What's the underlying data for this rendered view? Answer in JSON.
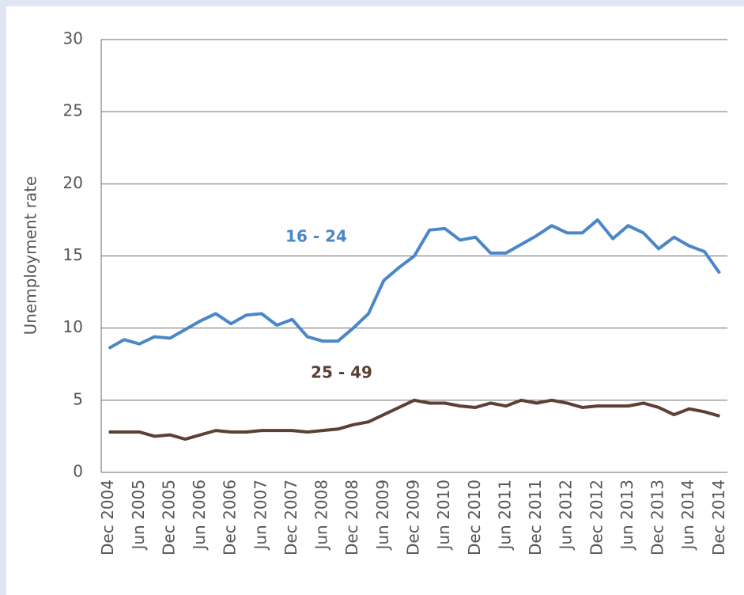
{
  "chart_data": {
    "type": "line",
    "y_label": "Unemployment rate",
    "categories": [
      "Dec 2004",
      null,
      "Jun 2005",
      null,
      "Dec 2005",
      null,
      "Jun 2006",
      null,
      "Dec 2006",
      null,
      "Jun 2007",
      null,
      "Dec 2007",
      null,
      "Jun 2008",
      null,
      "Dec 2008",
      null,
      "Jun 2009",
      null,
      "Dec 2009",
      null,
      "Jun 2010",
      null,
      "Dec 2010",
      null,
      "Jun 2011",
      null,
      "Dec 2011",
      null,
      "Jun 2012",
      null,
      "Dec 2012",
      null,
      "Jun 2013",
      null,
      "Dec 2013",
      null,
      "Jun 2014",
      null,
      "Dec 2014"
    ],
    "series": [
      {
        "name": "16 - 24",
        "color": "#4a86c8",
        "values": [
          8.6,
          9.2,
          8.9,
          9.4,
          9.3,
          9.9,
          10.5,
          11.0,
          10.3,
          10.9,
          11.0,
          10.2,
          10.6,
          9.4,
          9.1,
          9.1,
          10.0,
          11.0,
          13.3,
          14.2,
          15.0,
          16.8,
          16.9,
          16.1,
          16.3,
          15.2,
          15.2,
          15.8,
          16.4,
          17.1,
          16.6,
          16.6,
          17.5,
          16.2,
          17.1,
          16.6,
          15.5,
          16.3,
          15.7,
          15.3,
          13.8
        ]
      },
      {
        "name": "25 - 49",
        "color": "#5c4033",
        "values": [
          2.8,
          2.8,
          2.8,
          2.5,
          2.6,
          2.3,
          2.6,
          2.9,
          2.8,
          2.8,
          2.9,
          2.9,
          2.9,
          2.8,
          2.9,
          3.0,
          3.3,
          3.5,
          4.0,
          4.5,
          5.0,
          4.8,
          4.8,
          4.6,
          4.5,
          4.8,
          4.6,
          5.0,
          4.8,
          5.0,
          4.8,
          4.5,
          4.6,
          4.6,
          4.6,
          4.8,
          4.5,
          4.0,
          4.4,
          4.2,
          3.9
        ]
      }
    ],
    "ylim": [
      0,
      30
    ],
    "yticks": [
      0,
      5,
      10,
      15,
      20,
      25,
      30
    ],
    "grid": true
  }
}
